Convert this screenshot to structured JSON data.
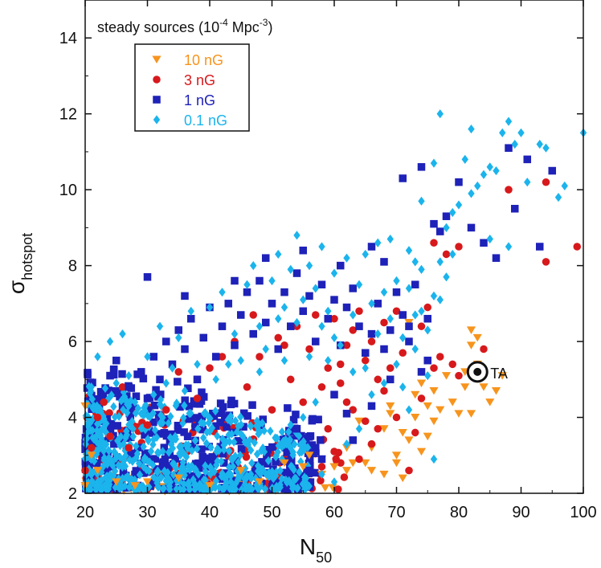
{
  "chart_data": {
    "type": "scatter",
    "title": "",
    "xlabel": "N",
    "xlabel_sub": "50",
    "ylabel": "σ",
    "ylabel_sub": "hotspot",
    "xlim": [
      20,
      100
    ],
    "ylim": [
      2,
      15
    ],
    "xticks": [
      "20",
      "30",
      "40",
      "50",
      "60",
      "70",
      "80",
      "90",
      "100"
    ],
    "yticks": [
      "2",
      "4",
      "6",
      "8",
      "10",
      "12",
      "14"
    ],
    "annotation": {
      "prefix": "steady sources (10",
      "sup": "-4",
      "unit": " Mpc",
      "unit_sup": "-3",
      "suffix": ")"
    },
    "legend_position": "top-left",
    "point_label": {
      "text": "TA",
      "x": 83,
      "y": 5.2
    },
    "series": [
      {
        "name": "10 nG",
        "marker": "triangle-down",
        "color": "#f7941d",
        "points": [
          [
            20,
            4.3
          ],
          [
            20,
            2.2
          ],
          [
            21,
            3.0
          ],
          [
            22,
            2.6
          ],
          [
            25,
            2.3
          ],
          [
            28,
            2.2
          ],
          [
            30,
            2.3
          ],
          [
            35,
            2.4
          ],
          [
            40,
            2.2
          ],
          [
            45,
            2.6
          ],
          [
            48,
            2.3
          ],
          [
            52,
            2.8
          ],
          [
            55,
            2.7
          ],
          [
            58,
            2.9
          ],
          [
            60,
            2.7
          ],
          [
            62,
            2.6
          ],
          [
            63,
            2.8
          ],
          [
            65,
            2.8
          ],
          [
            62,
            3.2
          ],
          [
            64,
            3.9
          ],
          [
            66,
            3.2
          ],
          [
            68,
            3.7
          ],
          [
            69,
            4.3
          ],
          [
            70,
            3.0
          ],
          [
            71,
            3.6
          ],
          [
            72,
            3.4
          ],
          [
            73,
            4.0
          ],
          [
            74,
            3.1
          ],
          [
            74,
            4.9
          ],
          [
            75,
            3.5
          ],
          [
            76,
            4.7
          ],
          [
            76,
            3.9
          ],
          [
            77,
            4.2
          ],
          [
            70,
            2.8
          ],
          [
            68,
            2.5
          ],
          [
            66,
            2.6
          ],
          [
            71,
            2.4
          ],
          [
            58,
            2.5
          ],
          [
            56,
            3.0
          ],
          [
            72,
            6.5
          ],
          [
            73,
            4.6
          ],
          [
            80,
            4.1
          ],
          [
            81,
            4.8
          ],
          [
            82,
            4.1
          ],
          [
            83,
            5.4
          ],
          [
            84,
            4.8
          ],
          [
            85,
            4.4
          ],
          [
            86,
            4.7
          ],
          [
            82,
            5.9
          ],
          [
            82,
            6.3
          ],
          [
            83,
            6.1
          ],
          [
            84,
            5.1
          ],
          [
            81,
            5.2
          ],
          [
            87,
            5.1
          ],
          [
            78,
            5.1
          ],
          [
            79,
            4.4
          ],
          [
            75,
            4.3
          ],
          [
            69,
            4.1
          ]
        ]
      },
      {
        "name": "3 nG",
        "marker": "circle",
        "color": "#d7191c",
        "points": [
          [
            20,
            2.6
          ],
          [
            21,
            3.2
          ],
          [
            22,
            4.0
          ],
          [
            23,
            4.4
          ],
          [
            24,
            3.5
          ],
          [
            25,
            5.5
          ],
          [
            26,
            4.8
          ],
          [
            27,
            3.2
          ],
          [
            30,
            3.8
          ],
          [
            33,
            4.2
          ],
          [
            35,
            5.2
          ],
          [
            38,
            4.5
          ],
          [
            40,
            5.3
          ],
          [
            42,
            5.6
          ],
          [
            44,
            6.0
          ],
          [
            46,
            4.8
          ],
          [
            48,
            5.6
          ],
          [
            50,
            4.2
          ],
          [
            51,
            6.1
          ],
          [
            53,
            5.0
          ],
          [
            54,
            6.4
          ],
          [
            55,
            4.4
          ],
          [
            56,
            5.8
          ],
          [
            57,
            6.7
          ],
          [
            58,
            4.8
          ],
          [
            59,
            5.3
          ],
          [
            60,
            6.6
          ],
          [
            61,
            4.9
          ],
          [
            62,
            5.9
          ],
          [
            63,
            4.2
          ],
          [
            64,
            6.8
          ],
          [
            65,
            5.5
          ],
          [
            66,
            6.0
          ],
          [
            67,
            5.0
          ],
          [
            68,
            6.5
          ],
          [
            69,
            5.3
          ],
          [
            70,
            6.8
          ],
          [
            71,
            5.7
          ],
          [
            72,
            2.6
          ],
          [
            73,
            3.6
          ],
          [
            74,
            4.5
          ],
          [
            75,
            6.9
          ],
          [
            76,
            5.3
          ],
          [
            77,
            5.6
          ],
          [
            78,
            8.3
          ],
          [
            79,
            5.4
          ],
          [
            80,
            8.5
          ],
          [
            76,
            8.6
          ],
          [
            74,
            6.4
          ],
          [
            84,
            5.8
          ],
          [
            80,
            5.1
          ],
          [
            88,
            10.0
          ],
          [
            94,
            10.2
          ],
          [
            94,
            8.1
          ],
          [
            99,
            8.5
          ],
          [
            62,
            4.4
          ],
          [
            60,
            3.1
          ],
          [
            64,
            2.9
          ],
          [
            58,
            2.7
          ],
          [
            65,
            3.9
          ],
          [
            66,
            3.3
          ],
          [
            68,
            4.7
          ],
          [
            67,
            3.7
          ],
          [
            70,
            4.0
          ],
          [
            59,
            3.7
          ],
          [
            61,
            5.4
          ],
          [
            63,
            6.3
          ],
          [
            47,
            6.7
          ],
          [
            52,
            5.9
          ]
        ]
      },
      {
        "name": "1 nG",
        "marker": "square",
        "color": "#1e22b8",
        "points": [
          [
            24,
            5.1
          ],
          [
            25,
            5.5
          ],
          [
            27,
            4.8
          ],
          [
            29,
            5.2
          ],
          [
            30,
            4.5
          ],
          [
            31,
            5.6
          ],
          [
            32,
            5.0
          ],
          [
            33,
            6.0
          ],
          [
            34,
            5.4
          ],
          [
            35,
            6.3
          ],
          [
            36,
            5.8
          ],
          [
            37,
            6.6
          ],
          [
            38,
            5.0
          ],
          [
            39,
            6.1
          ],
          [
            40,
            6.9
          ],
          [
            41,
            5.6
          ],
          [
            42,
            6.4
          ],
          [
            43,
            7.0
          ],
          [
            44,
            5.9
          ],
          [
            45,
            6.7
          ],
          [
            46,
            7.3
          ],
          [
            47,
            6.2
          ],
          [
            48,
            7.6
          ],
          [
            49,
            6.5
          ],
          [
            50,
            7.0
          ],
          [
            51,
            5.8
          ],
          [
            52,
            7.3
          ],
          [
            53,
            6.4
          ],
          [
            54,
            7.8
          ],
          [
            55,
            6.8
          ],
          [
            56,
            7.2
          ],
          [
            57,
            6.0
          ],
          [
            58,
            7.5
          ],
          [
            59,
            6.6
          ],
          [
            60,
            7.1
          ],
          [
            61,
            5.9
          ],
          [
            62,
            6.9
          ],
          [
            63,
            7.4
          ],
          [
            64,
            6.4
          ],
          [
            65,
            5.7
          ],
          [
            66,
            6.2
          ],
          [
            67,
            7.0
          ],
          [
            68,
            5.8
          ],
          [
            69,
            6.3
          ],
          [
            70,
            7.3
          ],
          [
            71,
            6.7
          ],
          [
            72,
            6.0
          ],
          [
            73,
            7.5
          ],
          [
            74,
            5.2
          ],
          [
            75,
            6.6
          ],
          [
            76,
            9.1
          ],
          [
            77,
            8.9
          ],
          [
            78,
            9.3
          ],
          [
            80,
            10.2
          ],
          [
            82,
            9.0
          ],
          [
            84,
            8.6
          ],
          [
            86,
            8.2
          ],
          [
            88,
            11.1
          ],
          [
            89,
            9.5
          ],
          [
            91,
            10.8
          ],
          [
            93,
            8.5
          ],
          [
            95,
            10.5
          ],
          [
            30,
            7.7
          ],
          [
            36,
            7.2
          ],
          [
            44,
            7.6
          ],
          [
            49,
            8.2
          ],
          [
            55,
            8.4
          ],
          [
            61,
            8.0
          ],
          [
            66,
            8.5
          ],
          [
            71,
            10.3
          ],
          [
            74,
            10.6
          ],
          [
            68,
            8.1
          ],
          [
            72,
            6.4
          ],
          [
            75,
            5.5
          ],
          [
            69,
            5.0
          ],
          [
            60,
            4.6
          ],
          [
            58,
            2.9
          ],
          [
            63,
            3.4
          ],
          [
            56,
            2.6
          ],
          [
            66,
            4.3
          ],
          [
            62,
            4.1
          ],
          [
            54,
            3.7
          ],
          [
            57,
            3.2
          ]
        ]
      },
      {
        "name": "0.1 nG",
        "marker": "diamond",
        "color": "#1bb4ec",
        "points": [
          [
            21,
            4.8
          ],
          [
            22,
            5.6
          ],
          [
            23,
            3.3
          ],
          [
            24,
            6.0
          ],
          [
            25,
            4.9
          ],
          [
            26,
            6.2
          ],
          [
            27,
            5.1
          ],
          [
            28,
            4.4
          ],
          [
            30,
            5.6
          ],
          [
            32,
            6.4
          ],
          [
            33,
            4.9
          ],
          [
            35,
            6.1
          ],
          [
            37,
            6.8
          ],
          [
            38,
            5.4
          ],
          [
            40,
            6.9
          ],
          [
            42,
            7.3
          ],
          [
            44,
            6.2
          ],
          [
            46,
            7.5
          ],
          [
            47,
            8.0
          ],
          [
            48,
            6.4
          ],
          [
            50,
            7.6
          ],
          [
            51,
            8.3
          ],
          [
            52,
            6.9
          ],
          [
            53,
            7.9
          ],
          [
            54,
            8.8
          ],
          [
            55,
            7.1
          ],
          [
            56,
            8.0
          ],
          [
            57,
            7.4
          ],
          [
            58,
            8.5
          ],
          [
            59,
            6.8
          ],
          [
            60,
            7.8
          ],
          [
            62,
            8.2
          ],
          [
            63,
            6.7
          ],
          [
            64,
            7.5
          ],
          [
            65,
            8.3
          ],
          [
            66,
            7.0
          ],
          [
            67,
            8.6
          ],
          [
            68,
            7.3
          ],
          [
            69,
            8.7
          ],
          [
            70,
            7.6
          ],
          [
            71,
            6.1
          ],
          [
            72,
            8.4
          ],
          [
            73,
            6.7
          ],
          [
            74,
            7.9
          ],
          [
            75,
            6.3
          ],
          [
            76,
            7.2
          ],
          [
            77,
            8.1
          ],
          [
            78,
            9.0
          ],
          [
            79,
            9.4
          ],
          [
            80,
            9.6
          ],
          [
            81,
            10.8
          ],
          [
            82,
            9.9
          ],
          [
            83,
            10.1
          ],
          [
            84,
            10.4
          ],
          [
            85,
            10.6
          ],
          [
            86,
            10.5
          ],
          [
            87,
            11.5
          ],
          [
            88,
            11.8
          ],
          [
            89,
            11.2
          ],
          [
            90,
            11.5
          ],
          [
            91,
            10.2
          ],
          [
            93,
            11.2
          ],
          [
            94,
            11.1
          ],
          [
            96,
            9.8
          ],
          [
            97,
            10.1
          ],
          [
            100,
            11.5
          ],
          [
            77,
            12.0
          ],
          [
            76,
            10.7
          ],
          [
            82,
            11.6
          ],
          [
            85,
            8.7
          ],
          [
            88,
            8.5
          ],
          [
            74,
            9.7
          ],
          [
            72,
            7.4
          ],
          [
            78,
            7.7
          ],
          [
            79,
            8.3
          ],
          [
            67,
            6.2
          ],
          [
            65,
            5.3
          ],
          [
            63,
            5.2
          ],
          [
            61,
            5.9
          ],
          [
            59,
            5.5
          ],
          [
            57,
            4.4
          ],
          [
            55,
            4.0
          ],
          [
            53,
            3.8
          ],
          [
            60,
            2.3
          ],
          [
            58,
            2.5
          ],
          [
            72,
            4.2
          ],
          [
            75,
            5.1
          ],
          [
            66,
            4.6
          ],
          [
            76,
            2.9
          ],
          [
            64,
            3.7
          ],
          [
            62,
            3.3
          ],
          [
            70,
            5.4
          ],
          [
            68,
            4.9
          ],
          [
            73,
            5.8
          ],
          [
            71,
            4.8
          ],
          [
            69,
            6.6
          ],
          [
            74,
            6.8
          ],
          [
            77,
            7.1
          ],
          [
            73,
            8.1
          ],
          [
            60,
            6.1
          ],
          [
            58,
            6.4
          ],
          [
            56,
            5.6
          ],
          [
            54,
            6.5
          ],
          [
            52,
            5.5
          ],
          [
            51,
            6.6
          ],
          [
            49,
            5.8
          ],
          [
            48,
            5.2
          ],
          [
            45,
            5.5
          ],
          [
            43,
            5.4
          ],
          [
            41,
            5.0
          ],
          [
            36,
            4.7
          ],
          [
            34,
            5.3
          ],
          [
            31,
            4.6
          ],
          [
            29,
            4.1
          ],
          [
            27,
            4.3
          ]
        ]
      }
    ]
  }
}
